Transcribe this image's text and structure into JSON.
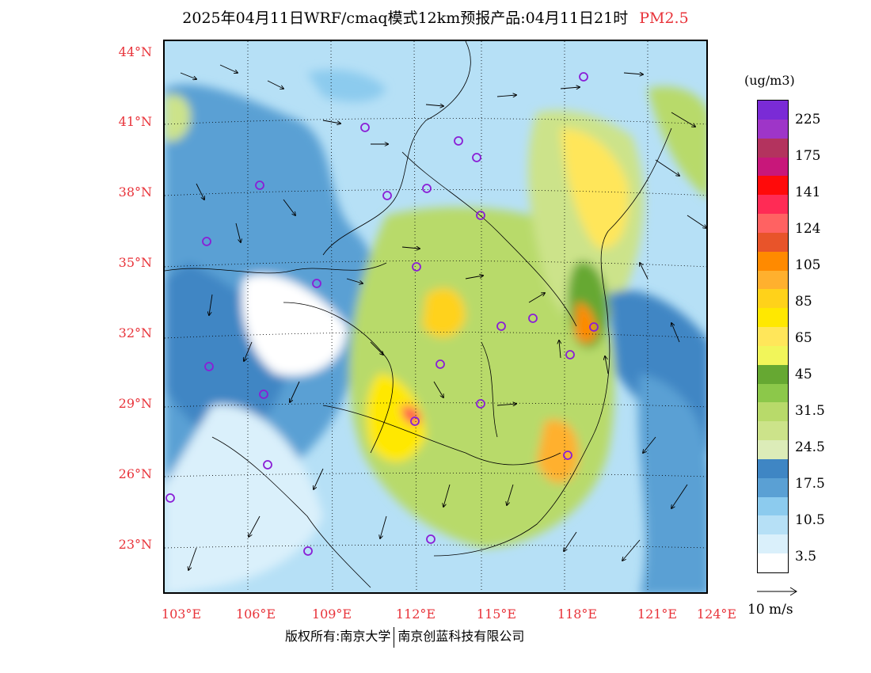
{
  "title": {
    "main": "2025年04月11日WRF/cmaq模式12km预报产品:04月11日21时",
    "pollutant": "PM2.5",
    "pollutant_color": "#e8333a"
  },
  "axes": {
    "lat_labels": [
      "44°N",
      "41°N",
      "38°N",
      "35°N",
      "32°N",
      "29°N",
      "26°N",
      "23°N"
    ],
    "lon_labels": [
      "103°E",
      "106°E",
      "109°E",
      "112°E",
      "115°E",
      "118°E",
      "121°E",
      "124°E"
    ],
    "label_color": "#e8333a"
  },
  "legend": {
    "unit": "(ug/m3)",
    "labels": [
      "225",
      "175",
      "141",
      "124",
      "105",
      "85",
      "65",
      "45",
      "31.5",
      "24.5",
      "17.5",
      "10.5",
      "3.5"
    ],
    "colors": [
      "#7a2bd6",
      "#9e35c8",
      "#b3335e",
      "#c8177a",
      "#ff0a0a",
      "#ff2b55",
      "#ff6262",
      "#e8542a",
      "#ff8a00",
      "#ffb02e",
      "#ffd21a",
      "#ffe800",
      "#ffe65a",
      "#f1f55a",
      "#66a832",
      "#8cc84a",
      "#b8da6a",
      "#cce38a",
      "#dcecb8",
      "#3f86c4",
      "#5aa0d4",
      "#8ccbee",
      "#b6e0f6",
      "#daf0fb",
      "#ffffff"
    ]
  },
  "wind_reference": {
    "label": "10 m/s"
  },
  "footer": {
    "left": "版权所有:南京大学",
    "right": "南京创蓝科技有限公司"
  }
}
